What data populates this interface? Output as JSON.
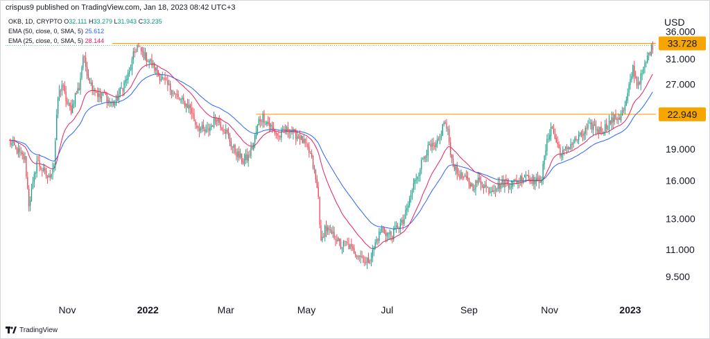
{
  "publish_line": "crispus9 published on TradingView.com, Jan 18, 2023 08:42 UTC+3",
  "legend": {
    "symbol": "OKB, 1D, CRYPTO",
    "open_label": "O",
    "open": "32.111",
    "high_label": "H",
    "high": "33.279",
    "low_label": "L",
    "low": "31.943",
    "close_label": "C",
    "close": "33.235",
    "ema50_label": "EMA (50, close, 0, SMA, 5)",
    "ema50_value": "25.612",
    "ema25_label": "EMA (25, close, 0, SMA, 5)",
    "ema25_value": "28.144"
  },
  "footer": {
    "brand": "TradingView"
  },
  "colors": {
    "up": "#089981",
    "down": "#f23645",
    "ema50": "#2962ff",
    "ema25": "#e91e63",
    "level": "#f7a600",
    "tag": "#f7a600",
    "dotted": "#26a69a"
  },
  "chart_data": {
    "type": "candlestick",
    "symbol": "OKB",
    "interval": "1D",
    "currency": "USD",
    "y_scale": "log",
    "y_ticks": [
      "9.500",
      "11.000",
      "13.000",
      "16.000",
      "19.000",
      "22.949",
      "27.000",
      "31.000",
      "33.728",
      "36.000"
    ],
    "y_tick_values": [
      9.5,
      11,
      13,
      16,
      19,
      22.949,
      27,
      31,
      33.728,
      36
    ],
    "x_ticks": [
      "Nov",
      "2022",
      "Mar",
      "May",
      "Jul",
      "Sep",
      "Nov",
      "2023"
    ],
    "x_tick_dates": [
      "2021-11-01",
      "2022-01-01",
      "2022-03-01",
      "2022-05-01",
      "2022-07-01",
      "2022-09-01",
      "2022-11-01",
      "2023-01-01"
    ],
    "x_range": [
      "2021-09-17",
      "2023-01-28"
    ],
    "levels": [
      {
        "value": 33.728,
        "label": "33.728",
        "start": "2021-12-05"
      },
      {
        "value": 22.949,
        "label": "22.949",
        "start": "2022-03-24"
      }
    ],
    "close_path": [
      [
        "2021-09-18",
        19.8
      ],
      [
        "2021-09-22",
        19.2
      ],
      [
        "2021-09-26",
        18.5
      ],
      [
        "2021-09-30",
        18.0
      ],
      [
        "2021-10-03",
        14.1
      ],
      [
        "2021-10-06",
        15.6
      ],
      [
        "2021-10-09",
        17.8
      ],
      [
        "2021-10-12",
        17.2
      ],
      [
        "2021-10-15",
        16.6
      ],
      [
        "2021-10-18",
        16.2
      ],
      [
        "2021-10-22",
        17.6
      ],
      [
        "2021-10-25",
        25.2
      ],
      [
        "2021-10-28",
        27.0
      ],
      [
        "2021-11-01",
        24.2
      ],
      [
        "2021-11-04",
        23.5
      ],
      [
        "2021-11-07",
        25.5
      ],
      [
        "2021-11-10",
        26.5
      ],
      [
        "2021-11-13",
        31.5
      ],
      [
        "2021-11-16",
        29.0
      ],
      [
        "2021-11-19",
        27.0
      ],
      [
        "2021-11-22",
        26.2
      ],
      [
        "2021-11-26",
        25.0
      ],
      [
        "2021-11-29",
        25.6
      ],
      [
        "2021-12-03",
        24.5
      ],
      [
        "2021-12-07",
        24.3
      ],
      [
        "2021-12-11",
        26.0
      ],
      [
        "2021-12-15",
        27.5
      ],
      [
        "2021-12-18",
        28.8
      ],
      [
        "2021-12-21",
        31.5
      ],
      [
        "2021-12-24",
        33.3
      ],
      [
        "2021-12-27",
        32.2
      ],
      [
        "2021-12-31",
        31.2
      ],
      [
        "2022-01-04",
        30.2
      ],
      [
        "2022-01-08",
        28.8
      ],
      [
        "2022-01-12",
        27.8
      ],
      [
        "2022-01-16",
        26.8
      ],
      [
        "2022-01-20",
        26.0
      ],
      [
        "2022-01-24",
        25.0
      ],
      [
        "2022-01-28",
        24.5
      ],
      [
        "2022-02-02",
        23.8
      ],
      [
        "2022-02-06",
        21.8
      ],
      [
        "2022-02-10",
        21.2
      ],
      [
        "2022-02-14",
        20.8
      ],
      [
        "2022-02-18",
        21.6
      ],
      [
        "2022-02-22",
        22.6
      ],
      [
        "2022-02-26",
        21.5
      ],
      [
        "2022-03-02",
        20.6
      ],
      [
        "2022-03-06",
        19.2
      ],
      [
        "2022-03-10",
        18.4
      ],
      [
        "2022-03-14",
        17.8
      ],
      [
        "2022-03-18",
        18.2
      ],
      [
        "2022-03-22",
        19.6
      ],
      [
        "2022-03-26",
        22.2
      ],
      [
        "2022-03-29",
        22.6
      ],
      [
        "2022-04-02",
        21.8
      ],
      [
        "2022-04-06",
        21.1
      ],
      [
        "2022-04-10",
        20.3
      ],
      [
        "2022-04-14",
        20.9
      ],
      [
        "2022-04-18",
        21.2
      ],
      [
        "2022-04-22",
        20.6
      ],
      [
        "2022-04-26",
        20.3
      ],
      [
        "2022-04-30",
        19.4
      ],
      [
        "2022-05-04",
        18.4
      ],
      [
        "2022-05-07",
        16.8
      ],
      [
        "2022-05-10",
        14.6
      ],
      [
        "2022-05-12",
        11.3
      ],
      [
        "2022-05-15",
        12.4
      ],
      [
        "2022-05-19",
        12.0
      ],
      [
        "2022-05-23",
        11.8
      ],
      [
        "2022-05-27",
        11.2
      ],
      [
        "2022-05-31",
        11.4
      ],
      [
        "2022-06-04",
        11.0
      ],
      [
        "2022-06-08",
        10.8
      ],
      [
        "2022-06-12",
        10.6
      ],
      [
        "2022-06-15",
        10.2
      ],
      [
        "2022-06-19",
        10.6
      ],
      [
        "2022-06-23",
        11.6
      ],
      [
        "2022-06-27",
        12.3
      ],
      [
        "2022-07-01",
        12.0
      ],
      [
        "2022-07-05",
        11.9
      ],
      [
        "2022-07-09",
        12.5
      ],
      [
        "2022-07-13",
        12.7
      ],
      [
        "2022-07-17",
        14.0
      ],
      [
        "2022-07-21",
        15.6
      ],
      [
        "2022-07-25",
        16.9
      ],
      [
        "2022-07-29",
        18.4
      ],
      [
        "2022-08-02",
        19.2
      ],
      [
        "2022-08-06",
        19.0
      ],
      [
        "2022-08-10",
        20.2
      ],
      [
        "2022-08-13",
        22.1
      ],
      [
        "2022-08-16",
        20.8
      ],
      [
        "2022-08-19",
        17.9
      ],
      [
        "2022-08-23",
        16.7
      ],
      [
        "2022-08-27",
        16.3
      ],
      [
        "2022-08-31",
        15.9
      ],
      [
        "2022-09-04",
        15.5
      ],
      [
        "2022-09-08",
        16.0
      ],
      [
        "2022-09-12",
        15.7
      ],
      [
        "2022-09-16",
        15.2
      ],
      [
        "2022-09-20",
        15.4
      ],
      [
        "2022-09-24",
        15.6
      ],
      [
        "2022-09-28",
        15.9
      ],
      [
        "2022-10-02",
        15.7
      ],
      [
        "2022-10-06",
        15.9
      ],
      [
        "2022-10-10",
        16.2
      ],
      [
        "2022-10-14",
        16.6
      ],
      [
        "2022-10-18",
        16.1
      ],
      [
        "2022-10-22",
        15.9
      ],
      [
        "2022-10-26",
        16.3
      ],
      [
        "2022-10-29",
        19.0
      ],
      [
        "2022-11-02",
        21.6
      ],
      [
        "2022-11-06",
        19.7
      ],
      [
        "2022-11-10",
        18.4
      ],
      [
        "2022-11-14",
        19.1
      ],
      [
        "2022-11-18",
        19.6
      ],
      [
        "2022-11-22",
        20.1
      ],
      [
        "2022-11-26",
        20.6
      ],
      [
        "2022-11-30",
        21.3
      ],
      [
        "2022-12-04",
        21.6
      ],
      [
        "2022-12-08",
        21.0
      ],
      [
        "2022-12-12",
        21.2
      ],
      [
        "2022-12-16",
        21.9
      ],
      [
        "2022-12-20",
        22.4
      ],
      [
        "2022-12-24",
        22.6
      ],
      [
        "2022-12-28",
        23.8
      ],
      [
        "2022-12-31",
        26.4
      ],
      [
        "2023-01-03",
        29.6
      ],
      [
        "2023-01-06",
        27.1
      ],
      [
        "2023-01-09",
        28.0
      ],
      [
        "2023-01-12",
        29.9
      ],
      [
        "2023-01-15",
        31.9
      ],
      [
        "2023-01-18",
        33.2
      ]
    ],
    "series": [
      {
        "name": "EMA (25, close, 0, SMA, 5)",
        "last_value": 28.144
      },
      {
        "name": "EMA (50, close, 0, SMA, 5)",
        "last_value": 25.612
      }
    ]
  }
}
